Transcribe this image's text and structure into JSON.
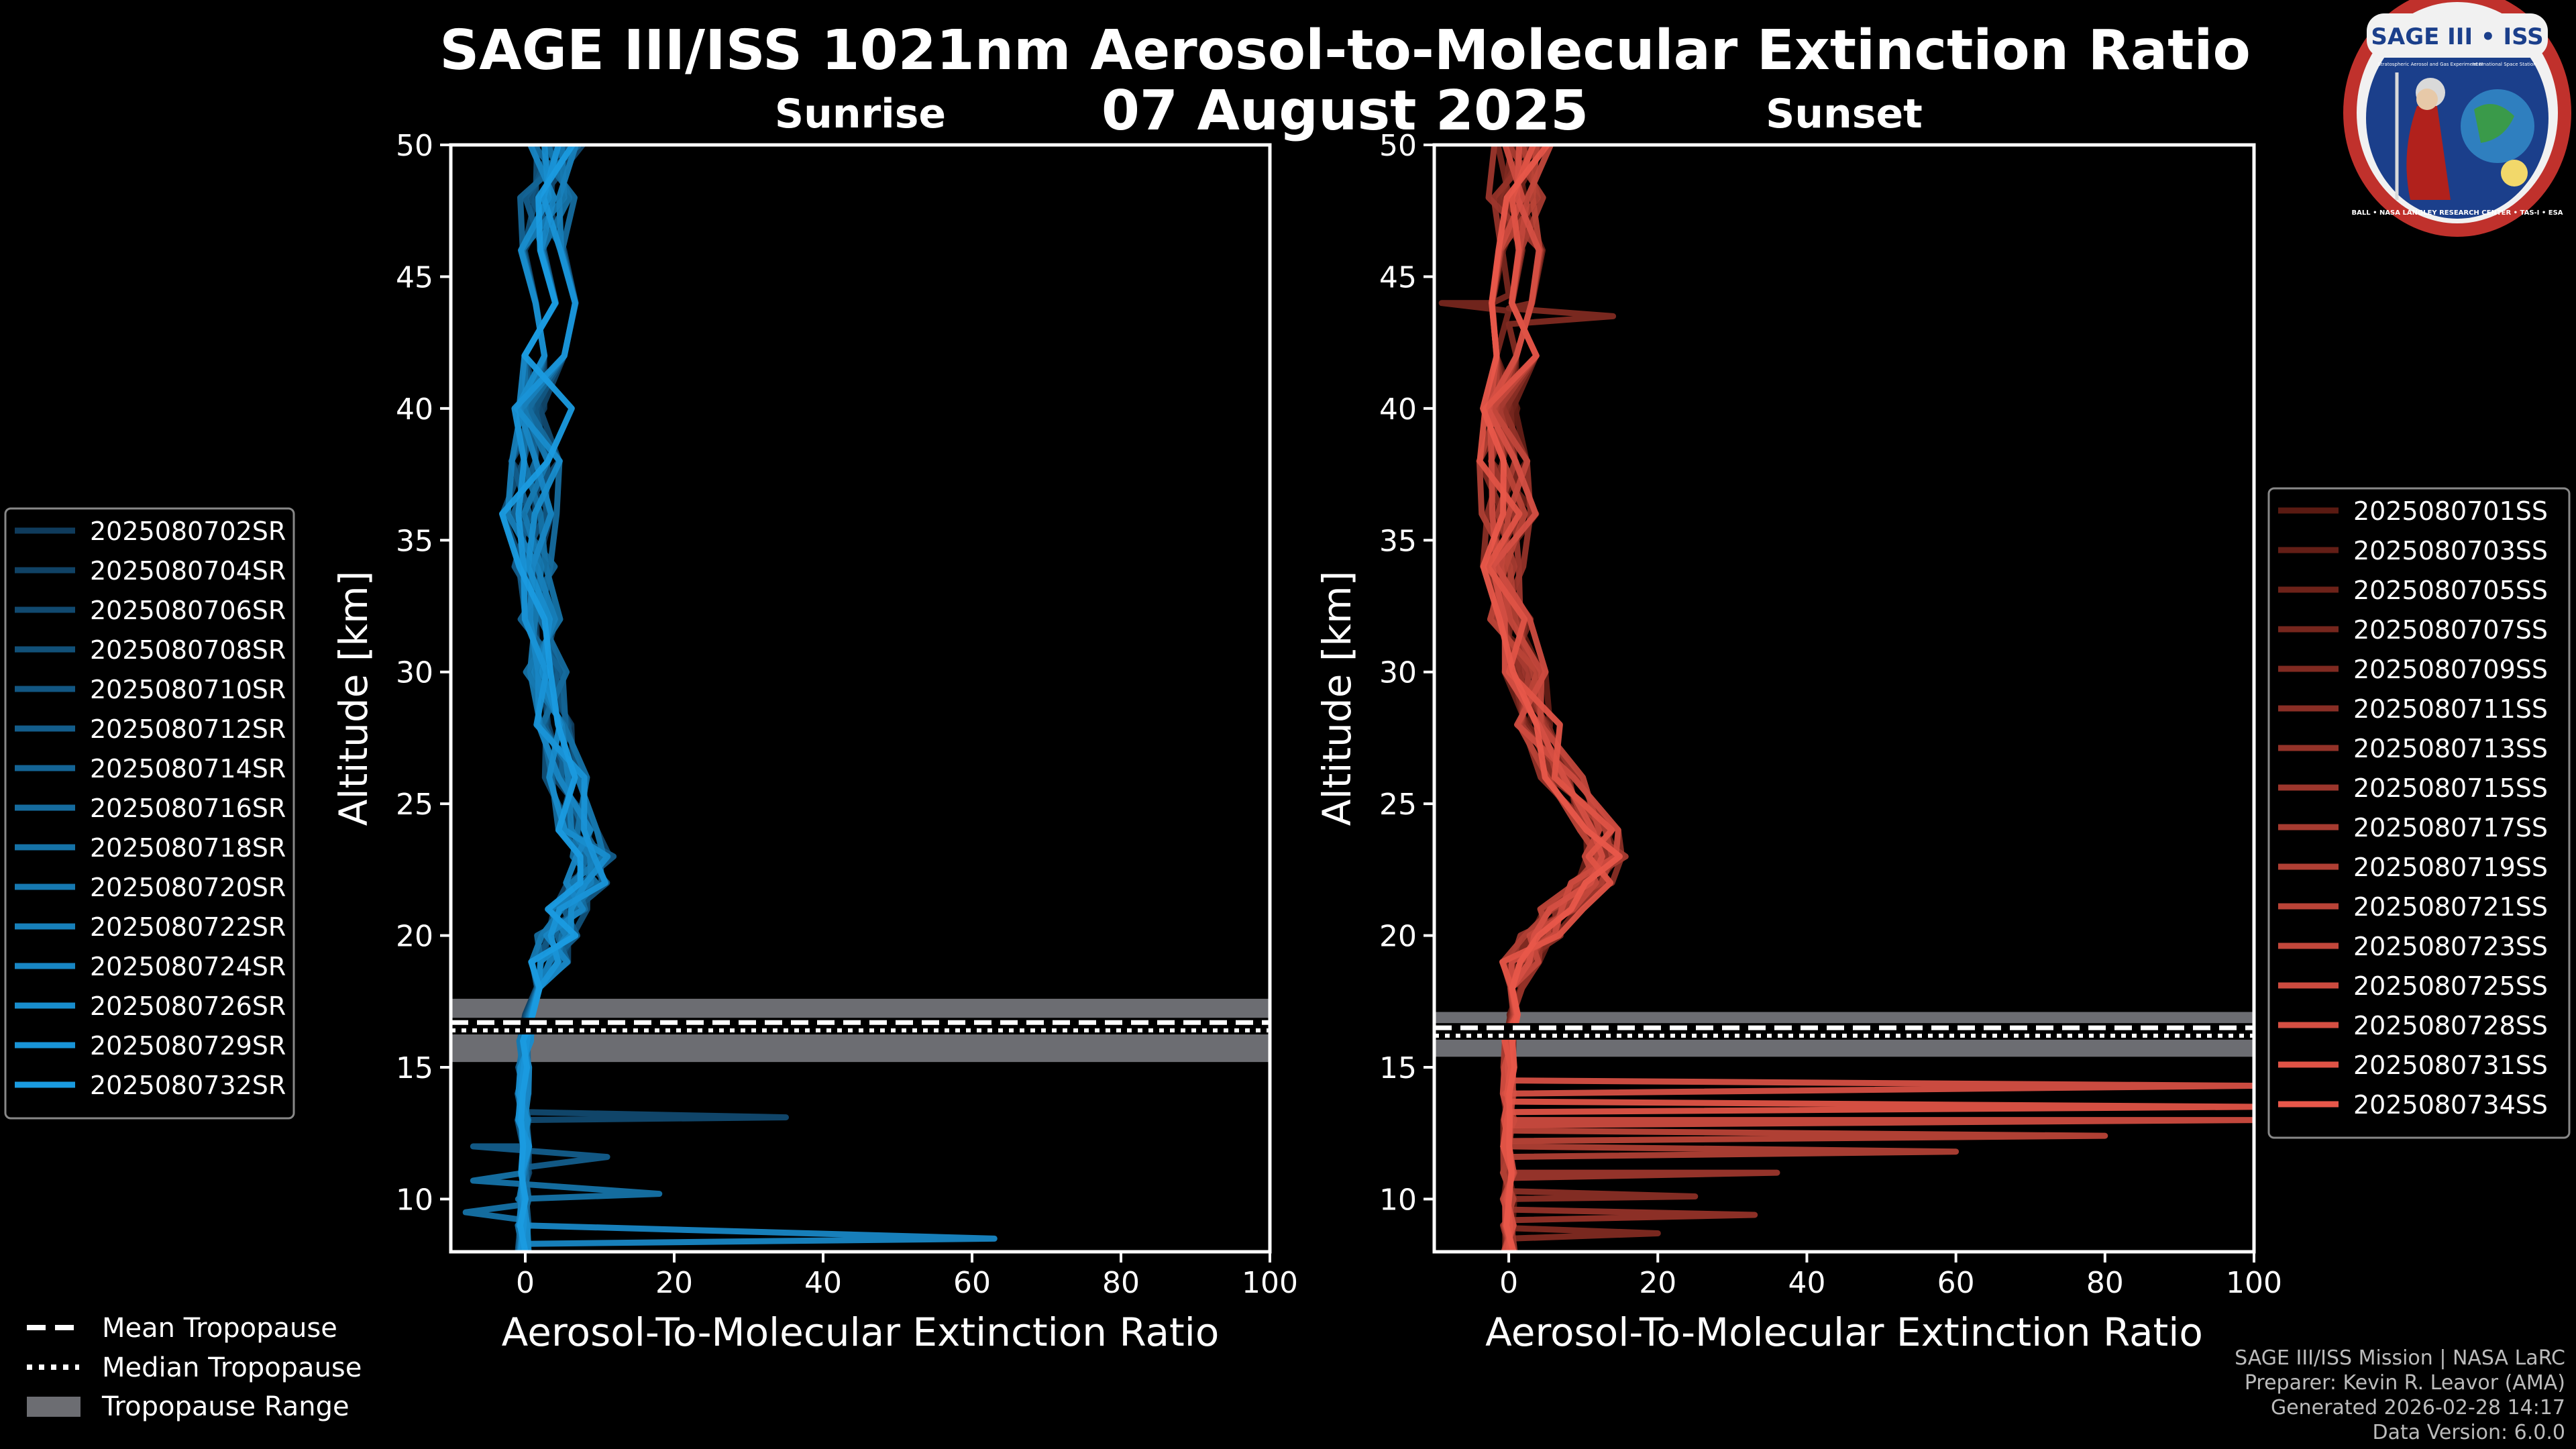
{
  "figure": {
    "title_line1": "SAGE III/ISS 1021nm Aerosol-to-Molecular Extinction Ratio",
    "title_line2": "07 August 2025",
    "credits": [
      "SAGE III/ISS Mission | NASA LaRC",
      "Preparer: Kevin R. Leavor (AMA)",
      "Generated 2026-02-28 14:17",
      "Data Version: 6.0.0"
    ],
    "logo": {
      "title": "SAGE III • ISS",
      "subtitle": "Stratospheric Aerosol and Gas Experiment III",
      "side_text": "International Space Station",
      "ring_text": "BALL • NASA LANGLEY RESEARCH CENTER • TAS-I • ESA"
    },
    "tropopause_legend": {
      "mean": "Mean Tropopause",
      "median": "Median Tropopause",
      "range": "Tropopause Range"
    }
  },
  "chart_data": [
    {
      "type": "line",
      "title": "Sunrise",
      "xlabel": "Aerosol-To-Molecular Extinction Ratio",
      "ylabel": "Altitude [km]",
      "xlim": [
        -10,
        100
      ],
      "ylim": [
        8,
        50
      ],
      "xticks": [
        0,
        20,
        40,
        60,
        80,
        100
      ],
      "yticks": [
        10,
        15,
        20,
        25,
        30,
        35,
        40,
        45,
        50
      ],
      "tropopause": {
        "mean": 16.7,
        "median": 16.4,
        "range": [
          15.2,
          17.6
        ]
      },
      "color_dark": "#0f3b5c",
      "color_light": "#1a9be0",
      "series_names": [
        "2025080702SR",
        "2025080704SR",
        "2025080706SR",
        "2025080708SR",
        "2025080710SR",
        "2025080712SR",
        "2025080714SR",
        "2025080716SR",
        "2025080718SR",
        "2025080720SR",
        "2025080722SR",
        "2025080724SR",
        "2025080726SR",
        "2025080729SR",
        "2025080732SR"
      ],
      "base_profile": [
        [
          50,
          4
        ],
        [
          48,
          3
        ],
        [
          46,
          3
        ],
        [
          44,
          3.5
        ],
        [
          42,
          3
        ],
        [
          40,
          2.5
        ],
        [
          38,
          1.5
        ],
        [
          36,
          0.5
        ],
        [
          34,
          1
        ],
        [
          32,
          2
        ],
        [
          30,
          3
        ],
        [
          28,
          4.5
        ],
        [
          26,
          5.5
        ],
        [
          24,
          7
        ],
        [
          23,
          9
        ],
        [
          22,
          8
        ],
        [
          21,
          6
        ],
        [
          20,
          4.5
        ],
        [
          19,
          3
        ],
        [
          18,
          1.5
        ],
        [
          17,
          0.5
        ],
        [
          16,
          0
        ],
        [
          15,
          -0.2
        ],
        [
          14,
          -0.3
        ],
        [
          13,
          -0.3
        ],
        [
          12,
          -0.2
        ],
        [
          11,
          -0.2
        ],
        [
          10,
          -0.2
        ],
        [
          9,
          -0.2
        ],
        [
          8,
          -0.2
        ]
      ],
      "spikes": [
        {
          "series": 2,
          "points": [
            [
              13.3,
              0
            ],
            [
              13.1,
              35
            ],
            [
              12.9,
              0
            ]
          ]
        },
        {
          "series": 5,
          "points": [
            [
              12.8,
              0
            ],
            [
              12.0,
              -7
            ],
            [
              11.6,
              11
            ],
            [
              11.2,
              0
            ]
          ]
        },
        {
          "series": 8,
          "points": [
            [
              11.0,
              0
            ],
            [
              10.7,
              -7
            ],
            [
              10.2,
              18
            ],
            [
              9.8,
              0
            ],
            [
              9.5,
              -8
            ],
            [
              9.2,
              0
            ]
          ]
        },
        {
          "series": 11,
          "points": [
            [
              9.0,
              0
            ],
            [
              8.7,
              38
            ],
            [
              8.5,
              63
            ],
            [
              8.3,
              0
            ]
          ]
        }
      ]
    },
    {
      "type": "line",
      "title": "Sunset",
      "xlabel": "Aerosol-To-Molecular Extinction Ratio",
      "ylabel": "Altitude [km]",
      "xlim": [
        -10,
        100
      ],
      "ylim": [
        8,
        50
      ],
      "xticks": [
        0,
        20,
        40,
        60,
        80,
        100
      ],
      "yticks": [
        10,
        15,
        20,
        25,
        30,
        35,
        40,
        45,
        50
      ],
      "tropopause": {
        "mean": 16.5,
        "median": 16.2,
        "range": [
          15.4,
          17.1
        ]
      },
      "color_dark": "#5a1a12",
      "color_light": "#e8574a",
      "series_names": [
        "2025080701SS",
        "2025080703SS",
        "2025080705SS",
        "2025080707SS",
        "2025080709SS",
        "2025080711SS",
        "2025080713SS",
        "2025080715SS",
        "2025080717SS",
        "2025080719SS",
        "2025080721SS",
        "2025080723SS",
        "2025080725SS",
        "2025080728SS",
        "2025080731SS",
        "2025080734SS"
      ],
      "base_profile": [
        [
          50,
          2
        ],
        [
          48,
          1
        ],
        [
          46,
          1
        ],
        [
          44,
          1
        ],
        [
          42,
          0.5
        ],
        [
          40,
          0
        ],
        [
          38,
          0
        ],
        [
          36,
          0
        ],
        [
          34,
          -0.5
        ],
        [
          32,
          0
        ],
        [
          30,
          2
        ],
        [
          28,
          4
        ],
        [
          26,
          7
        ],
        [
          24,
          12
        ],
        [
          23,
          13
        ],
        [
          22,
          11
        ],
        [
          21,
          7
        ],
        [
          20,
          4
        ],
        [
          19,
          2
        ],
        [
          18,
          1
        ],
        [
          17,
          0.5
        ],
        [
          16,
          0.2
        ],
        [
          15,
          0
        ],
        [
          14,
          0
        ],
        [
          13,
          0
        ],
        [
          12,
          0
        ],
        [
          11,
          0
        ],
        [
          10,
          0
        ],
        [
          9,
          0
        ],
        [
          8,
          0
        ]
      ],
      "spikes": [
        {
          "series": 4,
          "points": [
            [
              43.8,
              0
            ],
            [
              43.5,
              14
            ],
            [
              43.2,
              0
            ]
          ]
        },
        {
          "series": 3,
          "points": [
            [
              44.3,
              0
            ],
            [
              44.0,
              -9
            ],
            [
              43.7,
              0
            ]
          ]
        },
        {
          "series": 13,
          "points": [
            [
              14.5,
              0
            ],
            [
              14.3,
              100
            ],
            [
              14.0,
              0
            ]
          ]
        },
        {
          "series": 14,
          "points": [
            [
              13.7,
              0
            ],
            [
              13.5,
              100
            ],
            [
              13.3,
              0
            ]
          ]
        },
        {
          "series": 12,
          "points": [
            [
              13.2,
              0
            ],
            [
              13.0,
              100
            ],
            [
              12.8,
              0
            ]
          ]
        },
        {
          "series": 10,
          "points": [
            [
              12.6,
              0
            ],
            [
              12.4,
              80
            ],
            [
              12.2,
              0
            ]
          ]
        },
        {
          "series": 9,
          "points": [
            [
              12.0,
              0
            ],
            [
              11.8,
              60
            ],
            [
              11.6,
              0
            ]
          ]
        },
        {
          "series": 7,
          "points": [
            [
              11.2,
              0
            ],
            [
              11.0,
              36
            ],
            [
              10.8,
              0
            ]
          ]
        },
        {
          "series": 5,
          "points": [
            [
              10.3,
              0
            ],
            [
              10.1,
              25
            ],
            [
              9.9,
              0
            ]
          ]
        },
        {
          "series": 6,
          "points": [
            [
              9.6,
              0
            ],
            [
              9.4,
              33
            ],
            [
              9.2,
              0
            ]
          ]
        },
        {
          "series": 4,
          "points": [
            [
              8.9,
              0
            ],
            [
              8.7,
              20
            ],
            [
              8.5,
              0
            ]
          ]
        }
      ]
    }
  ]
}
